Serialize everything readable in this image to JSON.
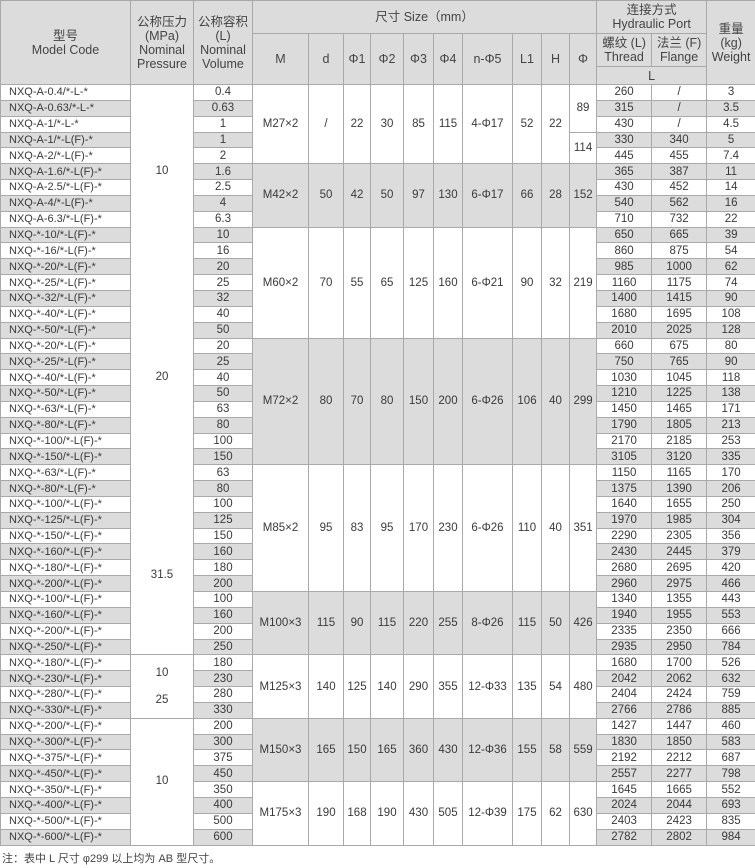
{
  "header": {
    "model_cn": "型号",
    "model_en": "Model Code",
    "pressure_cn": "公称压力",
    "pressure_unit": "(MPa)",
    "pressure_en1": "Nominal",
    "pressure_en2": "Pressure",
    "volume_cn": "公称容积",
    "volume_unit": "(L)",
    "volume_en1": "Nominal",
    "volume_en2": "Volume",
    "size": "尺寸 Size（mm）",
    "size_cols": [
      "M",
      "d",
      "Φ1",
      "Φ2",
      "Φ3",
      "Φ4",
      "n-Φ5",
      "L1",
      "H",
      "Φ"
    ],
    "port_cn": "连接方式",
    "port_en": "Hydraulic Port",
    "thread_cn": "螺纹 (L)",
    "thread_en": "Thread",
    "flange_cn": "法兰 (F)",
    "flange_en": "Flange",
    "l_label": "L",
    "weight_cn": "重量",
    "weight_unit": "(kg)",
    "weight_en": "Weight"
  },
  "pressure_groups": [
    {
      "labels": [
        "10"
      ],
      "span": 11,
      "bt": true,
      "bb": false
    },
    {
      "labels": [
        "20"
      ],
      "span": 15,
      "bt": false,
      "bb": false
    },
    {
      "labels": [
        "31.5"
      ],
      "span": 10,
      "bt": false,
      "bb": true
    },
    {
      "labels": [
        "10",
        "25"
      ],
      "span": 4,
      "bt": true,
      "bb": true
    },
    {
      "labels": [
        "10"
      ],
      "span": 8,
      "bt": true,
      "bb": true
    }
  ],
  "size_groups": [
    {
      "span": 5,
      "M": "M27×2",
      "d": "/",
      "phi1": "22",
      "phi2": "30",
      "phi3": "85",
      "phi4": "115",
      "n_phi5": "4-Φ17",
      "L1": "52",
      "H": "22",
      "phi": [
        {
          "v": "89",
          "span": 3
        },
        {
          "v": "114",
          "span": 2
        }
      ]
    },
    {
      "span": 4,
      "M": "M42×2",
      "d": "50",
      "phi1": "42",
      "phi2": "50",
      "phi3": "97",
      "phi4": "130",
      "n_phi5": "6-Φ17",
      "L1": "66",
      "H": "28",
      "phi": [
        {
          "v": "152",
          "span": 4
        }
      ]
    },
    {
      "span": 7,
      "M": "M60×2",
      "d": "70",
      "phi1": "55",
      "phi2": "65",
      "phi3": "125",
      "phi4": "160",
      "n_phi5": "6-Φ21",
      "L1": "90",
      "H": "32",
      "phi": [
        {
          "v": "219",
          "span": 7
        }
      ]
    },
    {
      "span": 8,
      "M": "M72×2",
      "d": "80",
      "phi1": "70",
      "phi2": "80",
      "phi3": "150",
      "phi4": "200",
      "n_phi5": "6-Φ26",
      "L1": "106",
      "H": "40",
      "phi": [
        {
          "v": "299",
          "span": 8
        }
      ]
    },
    {
      "span": 8,
      "M": "M85×2",
      "d": "95",
      "phi1": "83",
      "phi2": "95",
      "phi3": "170",
      "phi4": "230",
      "n_phi5": "6-Φ26",
      "L1": "110",
      "H": "40",
      "phi": [
        {
          "v": "351",
          "span": 8
        }
      ]
    },
    {
      "span": 4,
      "M": "M100×3",
      "d": "115",
      "phi1": "90",
      "phi2": "115",
      "phi3": "220",
      "phi4": "255",
      "n_phi5": "8-Φ26",
      "L1": "115",
      "H": "50",
      "phi": [
        {
          "v": "426",
          "span": 4
        }
      ]
    },
    {
      "span": 4,
      "M": "M125×3",
      "d": "140",
      "phi1": "125",
      "phi2": "140",
      "phi3": "290",
      "phi4": "355",
      "n_phi5": "12-Φ33",
      "L1": "135",
      "H": "54",
      "phi": [
        {
          "v": "480",
          "span": 4
        }
      ]
    },
    {
      "span": 4,
      "M": "M150×3",
      "d": "165",
      "phi1": "150",
      "phi2": "165",
      "phi3": "360",
      "phi4": "430",
      "n_phi5": "12-Φ36",
      "L1": "155",
      "H": "58",
      "phi": [
        {
          "v": "559",
          "span": 4
        }
      ]
    },
    {
      "span": 4,
      "M": "M175×3",
      "d": "190",
      "phi1": "168",
      "phi2": "190",
      "phi3": "430",
      "phi4": "505",
      "n_phi5": "12-Φ39",
      "L1": "175",
      "H": "62",
      "phi": [
        {
          "v": "630",
          "span": 4
        }
      ]
    }
  ],
  "rows": [
    [
      "NXQ-A-0.4/*-L-*",
      "0.4",
      "260",
      "/",
      "3"
    ],
    [
      "NXQ-A-0.63/*-L-*",
      "0.63",
      "315",
      "/",
      "3.5"
    ],
    [
      "NXQ-A-1/*-L-*",
      "1",
      "430",
      "/",
      "4.5"
    ],
    [
      "NXQ-A-1/*-L(F)-*",
      "1",
      "330",
      "340",
      "5"
    ],
    [
      "NXQ-A-2/*-L(F)-*",
      "2",
      "445",
      "455",
      "7.4"
    ],
    [
      "NXQ-A-1.6/*-L(F)-*",
      "1.6",
      "365",
      "387",
      "11"
    ],
    [
      "NXQ-A-2.5/*-L(F)-*",
      "2.5",
      "430",
      "452",
      "14"
    ],
    [
      "NXQ-A-4/*-L(F)-*",
      "4",
      "540",
      "562",
      "16"
    ],
    [
      "NXQ-A-6.3/*-L(F)-*",
      "6.3",
      "710",
      "732",
      "22"
    ],
    [
      "NXQ-*-10/*-L(F)-*",
      "10",
      "650",
      "665",
      "39"
    ],
    [
      "NXQ-*-16/*-L(F)-*",
      "16",
      "860",
      "875",
      "54"
    ],
    [
      "NXQ-*-20/*-L(F)-*",
      "20",
      "985",
      "1000",
      "62"
    ],
    [
      "NXQ-*-25/*-L(F)-*",
      "25",
      "1160",
      "1175",
      "74"
    ],
    [
      "NXQ-*-32/*-L(F)-*",
      "32",
      "1400",
      "1415",
      "90"
    ],
    [
      "NXQ-*-40/*-L(F)-*",
      "40",
      "1680",
      "1695",
      "108"
    ],
    [
      "NXQ-*-50/*-L(F)-*",
      "50",
      "2010",
      "2025",
      "128"
    ],
    [
      "NXQ-*-20/*-L(F)-*",
      "20",
      "660",
      "675",
      "80"
    ],
    [
      "NXQ-*-25/*-L(F)-*",
      "25",
      "750",
      "765",
      "90"
    ],
    [
      "NXQ-*-40/*-L(F)-*",
      "40",
      "1030",
      "1045",
      "118"
    ],
    [
      "NXQ-*-50/*-L(F)-*",
      "50",
      "1210",
      "1225",
      "138"
    ],
    [
      "NXQ-*-63/*-L(F)-*",
      "63",
      "1450",
      "1465",
      "171"
    ],
    [
      "NXQ-*-80/*-L(F)-*",
      "80",
      "1790",
      "1805",
      "213"
    ],
    [
      "NXQ-*-100/*-L(F)-*",
      "100",
      "2170",
      "2185",
      "253"
    ],
    [
      "NXQ-*-150/*-L(F)-*",
      "150",
      "3105",
      "3120",
      "335"
    ],
    [
      "NXQ-*-63/*-L(F)-*",
      "63",
      "1150",
      "1165",
      "170"
    ],
    [
      "NXQ-*-80/*-L(F)-*",
      "80",
      "1375",
      "1390",
      "206"
    ],
    [
      "NXQ-*-100/*-L(F)-*",
      "100",
      "1640",
      "1655",
      "250"
    ],
    [
      "NXQ-*-125/*-L(F)-*",
      "125",
      "1970",
      "1985",
      "304"
    ],
    [
      "NXQ-*-150/*-L(F)-*",
      "150",
      "2290",
      "2305",
      "356"
    ],
    [
      "NXQ-*-160/*-L(F)-*",
      "160",
      "2430",
      "2445",
      "379"
    ],
    [
      "NXQ-*-180/*-L(F)-*",
      "180",
      "2680",
      "2695",
      "420"
    ],
    [
      "NXQ-*-200/*-L(F)-*",
      "200",
      "2960",
      "2975",
      "466"
    ],
    [
      "NXQ-*-100/*-L(F)-*",
      "100",
      "1340",
      "1355",
      "443"
    ],
    [
      "NXQ-*-160/*-L(F)-*",
      "160",
      "1940",
      "1955",
      "553"
    ],
    [
      "NXQ-*-200/*-L(F)-*",
      "200",
      "2335",
      "2350",
      "666"
    ],
    [
      "NXQ-*-250/*-L(F)-*",
      "250",
      "2935",
      "2950",
      "784"
    ],
    [
      "NXQ-*-180/*-L(F)-*",
      "180",
      "1680",
      "1700",
      "526"
    ],
    [
      "NXQ-*-230/*-L(F)-*",
      "230",
      "2042",
      "2062",
      "632"
    ],
    [
      "NXQ-*-280/*-L(F)-*",
      "280",
      "2404",
      "2424",
      "759"
    ],
    [
      "NXQ-*-330/*-L(F)-*",
      "330",
      "2766",
      "2786",
      "885"
    ],
    [
      "NXQ-*-200/*-L(F)-*",
      "200",
      "1427",
      "1447",
      "460"
    ],
    [
      "NXQ-*-300/*-L(F)-*",
      "300",
      "1830",
      "1850",
      "583"
    ],
    [
      "NXQ-*-375/*-L(F)-*",
      "375",
      "2192",
      "2212",
      "687"
    ],
    [
      "NXQ-*-450/*-L(F)-*",
      "450",
      "2557",
      "2277",
      "798"
    ],
    [
      "NXQ-*-350/*-L(F)-*",
      "350",
      "1645",
      "1665",
      "552"
    ],
    [
      "NXQ-*-400/*-L(F)-*",
      "400",
      "2024",
      "2044",
      "693"
    ],
    [
      "NXQ-*-500/*-L(F)-*",
      "500",
      "2403",
      "2423",
      "835"
    ],
    [
      "NXQ-*-600/*-L(F)-*",
      "600",
      "2782",
      "2802",
      "984"
    ]
  ],
  "note": "注：表中 L 尺寸 φ299 以上均为 AB 型尺寸。"
}
